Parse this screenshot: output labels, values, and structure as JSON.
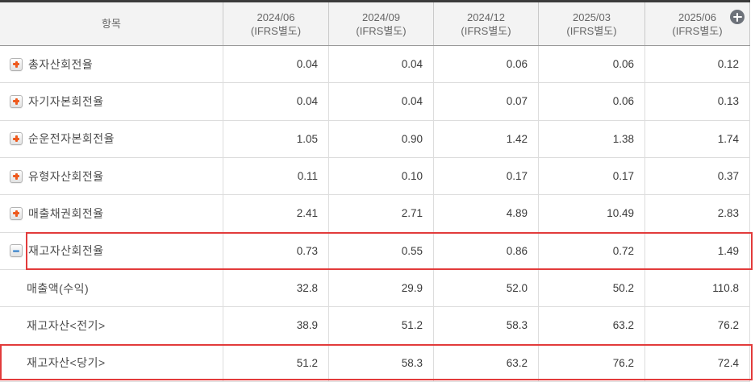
{
  "table": {
    "header": {
      "item_label": "항목",
      "columns": [
        {
          "period": "2024/06",
          "basis": "(IFRS별도)"
        },
        {
          "period": "2024/09",
          "basis": "(IFRS별도)"
        },
        {
          "period": "2024/12",
          "basis": "(IFRS별도)"
        },
        {
          "period": "2025/03",
          "basis": "(IFRS별도)"
        },
        {
          "period": "2025/06",
          "basis": "(IFRS별도)"
        }
      ]
    },
    "rows": [
      {
        "label": "총자산회전율",
        "type": "expandable",
        "values": [
          "0.04",
          "0.04",
          "0.06",
          "0.06",
          "0.12"
        ]
      },
      {
        "label": "자기자본회전율",
        "type": "expandable",
        "values": [
          "0.04",
          "0.04",
          "0.07",
          "0.06",
          "0.13"
        ]
      },
      {
        "label": "순운전자본회전율",
        "type": "expandable",
        "values": [
          "1.05",
          "0.90",
          "1.42",
          "1.38",
          "1.74"
        ]
      },
      {
        "label": "유형자산회전율",
        "type": "expandable",
        "values": [
          "0.11",
          "0.10",
          "0.17",
          "0.17",
          "0.37"
        ]
      },
      {
        "label": "매출채권회전율",
        "type": "expandable",
        "values": [
          "2.41",
          "2.71",
          "4.89",
          "10.49",
          "2.83"
        ]
      },
      {
        "label": "재고자산회전율",
        "type": "expanded",
        "highlighted": true,
        "values": [
          "0.73",
          "0.55",
          "0.86",
          "0.72",
          "1.49"
        ]
      },
      {
        "label": "매출액(수익)",
        "type": "sub",
        "values": [
          "32.8",
          "29.9",
          "52.0",
          "50.2",
          "110.8"
        ]
      },
      {
        "label": "재고자산<전기>",
        "type": "sub",
        "values": [
          "38.9",
          "51.2",
          "58.3",
          "63.2",
          "76.2"
        ]
      },
      {
        "label": "재고자산<당기>",
        "type": "sub",
        "highlighted": true,
        "values": [
          "51.2",
          "58.3",
          "63.2",
          "76.2",
          "72.4"
        ]
      }
    ],
    "colors": {
      "highlight_border": "#e23b3b",
      "expand_icon": "#ee5a1e",
      "collapse_icon": "#3f7fc0",
      "add_circle": "#6d727a",
      "header_bg": "#f3f3f3",
      "top_border": "#3b3b3b"
    }
  }
}
